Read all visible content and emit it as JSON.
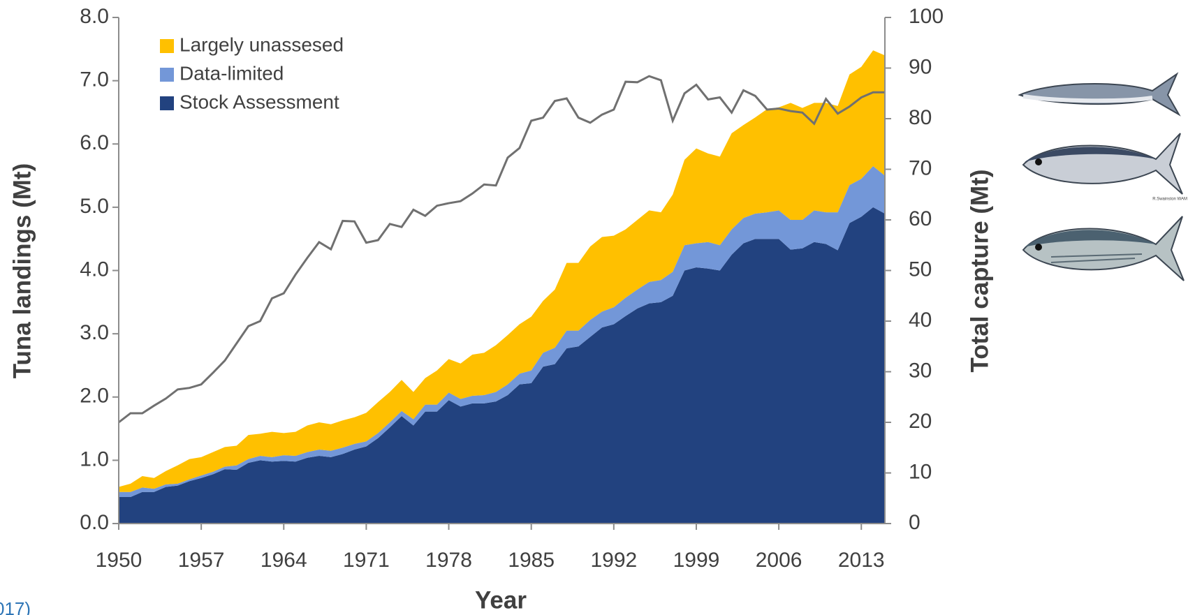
{
  "chart_data": {
    "type": "stacked-area-line",
    "x_label": "Year",
    "y_label": "Tuna landings (Mt)",
    "y2_label": "Total capture (Mt)",
    "annotations": [
      "017)",
      "R.Swainston WAM"
    ],
    "x": [
      1950,
      1951,
      1952,
      1953,
      1954,
      1955,
      1956,
      1957,
      1958,
      1959,
      1960,
      1961,
      1962,
      1963,
      1964,
      1965,
      1966,
      1967,
      1968,
      1969,
      1970,
      1971,
      1972,
      1973,
      1974,
      1975,
      1976,
      1977,
      1978,
      1979,
      1980,
      1981,
      1982,
      1983,
      1984,
      1985,
      1986,
      1987,
      1988,
      1989,
      1990,
      1991,
      1992,
      1993,
      1994,
      1995,
      1996,
      1997,
      1998,
      1999,
      2000,
      2001,
      2002,
      2003,
      2004,
      2005,
      2006,
      2007,
      2008,
      2009,
      2010,
      2011,
      2012,
      2013,
      2014,
      2015
    ],
    "xlim": [
      1950,
      2015
    ],
    "xticks": [
      1950,
      1957,
      1964,
      1971,
      1978,
      1985,
      1992,
      1999,
      2006,
      2013
    ],
    "ylim": [
      0,
      8
    ],
    "yticks": [
      {
        "value": 0,
        "label": "0.0"
      },
      {
        "value": 1,
        "label": "1.0"
      },
      {
        "value": 2,
        "label": "2.0"
      },
      {
        "value": 3,
        "label": "3.0"
      },
      {
        "value": 4,
        "label": "4.0"
      },
      {
        "value": 5,
        "label": "5.0"
      },
      {
        "value": 6,
        "label": "6.0"
      },
      {
        "value": 7,
        "label": "7.0"
      },
      {
        "value": 8,
        "label": "8.0"
      }
    ],
    "y2lim": [
      0,
      100
    ],
    "y2ticks": [
      0,
      10,
      20,
      30,
      40,
      50,
      60,
      70,
      80,
      90,
      100
    ],
    "legend": "upper left",
    "series": [
      {
        "name": "Stock Assessment",
        "color": "#22427f",
        "stack": true,
        "values": [
          0.42,
          0.42,
          0.5,
          0.5,
          0.58,
          0.6,
          0.67,
          0.72,
          0.78,
          0.86,
          0.85,
          0.96,
          1.0,
          0.98,
          0.99,
          0.98,
          1.04,
          1.07,
          1.05,
          1.1,
          1.17,
          1.22,
          1.35,
          1.52,
          1.7,
          1.55,
          1.77,
          1.77,
          1.95,
          1.85,
          1.9,
          1.9,
          1.93,
          2.03,
          2.2,
          2.22,
          2.48,
          2.52,
          2.77,
          2.8,
          2.95,
          3.1,
          3.15,
          3.28,
          3.4,
          3.48,
          3.5,
          3.6,
          4.0,
          4.05,
          4.03,
          4.0,
          4.25,
          4.43,
          4.5,
          4.5,
          4.5,
          4.33,
          4.35,
          4.45,
          4.42,
          4.32,
          4.75,
          4.85,
          5.0,
          4.9
        ]
      },
      {
        "name": "Data-limited",
        "color": "#7397d8",
        "stack": true,
        "values": [
          0.08,
          0.08,
          0.07,
          0.05,
          0.04,
          0.03,
          0.03,
          0.04,
          0.04,
          0.04,
          0.07,
          0.06,
          0.07,
          0.07,
          0.09,
          0.09,
          0.09,
          0.1,
          0.1,
          0.1,
          0.09,
          0.08,
          0.08,
          0.08,
          0.08,
          0.1,
          0.11,
          0.11,
          0.12,
          0.12,
          0.12,
          0.13,
          0.15,
          0.17,
          0.17,
          0.2,
          0.22,
          0.26,
          0.28,
          0.25,
          0.27,
          0.25,
          0.27,
          0.29,
          0.3,
          0.34,
          0.35,
          0.38,
          0.4,
          0.38,
          0.42,
          0.4,
          0.4,
          0.4,
          0.4,
          0.42,
          0.45,
          0.47,
          0.45,
          0.5,
          0.5,
          0.6,
          0.6,
          0.6,
          0.65,
          0.6
        ]
      },
      {
        "name": "Largely unassesed",
        "color": "#ffc000",
        "stack": true,
        "values": [
          0.08,
          0.13,
          0.18,
          0.17,
          0.21,
          0.29,
          0.32,
          0.29,
          0.31,
          0.31,
          0.31,
          0.38,
          0.35,
          0.4,
          0.35,
          0.38,
          0.42,
          0.43,
          0.42,
          0.43,
          0.42,
          0.45,
          0.49,
          0.48,
          0.49,
          0.43,
          0.42,
          0.54,
          0.53,
          0.56,
          0.65,
          0.67,
          0.74,
          0.78,
          0.78,
          0.85,
          0.82,
          0.92,
          1.07,
          1.07,
          1.16,
          1.18,
          1.13,
          1.08,
          1.1,
          1.13,
          1.07,
          1.22,
          1.35,
          1.5,
          1.4,
          1.4,
          1.52,
          1.47,
          1.52,
          1.63,
          1.63,
          1.85,
          1.77,
          1.7,
          1.73,
          1.68,
          1.75,
          1.77,
          1.83,
          1.9
        ]
      },
      {
        "color": "#707070",
        "axis": "y2",
        "line": true,
        "values": [
          20,
          21.8,
          21.8,
          23.3,
          24.7,
          26.5,
          26.8,
          27.5,
          29.8,
          32.2,
          35.6,
          39,
          40,
          44.5,
          45.5,
          49.2,
          52.5,
          55.6,
          54.2,
          59.8,
          59.7,
          55.5,
          56,
          59.2,
          58.6,
          62,
          60.8,
          62.8,
          63.3,
          63.7,
          65.2,
          67,
          66.8,
          72.3,
          74.2,
          79.6,
          80.2,
          83.5,
          84,
          80.2,
          79.2,
          80.8,
          81.8,
          87.3,
          87.2,
          88.4,
          87.6,
          79.6,
          85,
          86.7,
          83.8,
          84.2,
          81.2,
          85.6,
          84.5,
          81.8,
          82,
          81.5,
          81.2,
          79,
          83.9,
          81,
          82.4,
          84.2,
          85.2,
          85.2
        ]
      }
    ]
  }
}
